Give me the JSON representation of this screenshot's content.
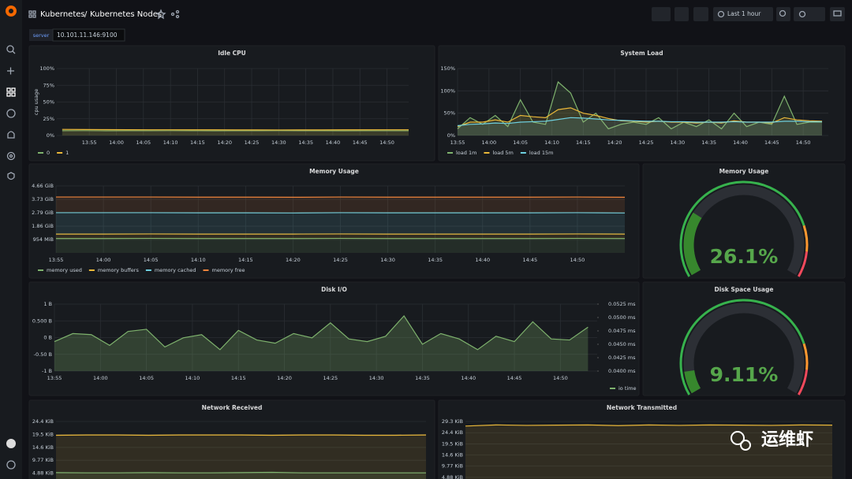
{
  "header": {
    "breadcrumb": "Kubernetes",
    "separator": "/",
    "title": "Kubernetes Nodes",
    "time_range": "Last 1 hour"
  },
  "variable": {
    "label": "server",
    "value": "10.101.11.146:9100"
  },
  "watermark": "运维虾",
  "panels": [
    {
      "title": "Idle CPU",
      "type": "line",
      "y_label": "cpu usage",
      "legend": "bottom-left",
      "xlim": [
        "13:49",
        "14:54"
      ],
      "xticks": [
        "13:55",
        "14:00",
        "14:05",
        "14:10",
        "14:15",
        "14:20",
        "14:25",
        "14:30",
        "14:35",
        "14:40",
        "14:45",
        "14:50"
      ],
      "ylim": [
        0,
        100
      ],
      "yticks": [
        {
          "value": 0,
          "label": "0%"
        },
        {
          "value": 25,
          "label": "25%"
        },
        {
          "value": 50,
          "label": "50%"
        },
        {
          "value": 75,
          "label": "75%"
        },
        {
          "value": 100,
          "label": "100%"
        }
      ],
      "x": [
        "13:50",
        "13:54",
        "13:58",
        "14:02",
        "14:06",
        "14:10",
        "14:14",
        "14:18",
        "14:22",
        "14:26",
        "14:30",
        "14:34",
        "14:38",
        "14:42",
        "14:46",
        "14:50",
        "14:54"
      ],
      "series": [
        {
          "name": "0",
          "color": "#7eb26d",
          "values": [
            7.2,
            7.3,
            7.1,
            7.2,
            7.2,
            7.3,
            7.2,
            7.1,
            7.2,
            7.2,
            7.3,
            7.2,
            7.2,
            7.1,
            7.2,
            7.2,
            7.2
          ]
        },
        {
          "name": "1",
          "color": "#eab839",
          "values": [
            9.2,
            9.0,
            8.8,
            8.7,
            8.6,
            8.6,
            8.5,
            8.5,
            8.4,
            8.4,
            8.3,
            8.4,
            8.4,
            8.5,
            8.5,
            8.6,
            8.6
          ]
        }
      ]
    },
    {
      "title": "System Load",
      "type": "line",
      "legend": "bottom-left",
      "xlim": [
        "13:55",
        "14:54"
      ],
      "xticks": [
        "13:55",
        "14:00",
        "14:05",
        "14:10",
        "14:15",
        "14:20",
        "14:25",
        "14:30",
        "14:35",
        "14:40",
        "14:45",
        "14:50"
      ],
      "ylim": [
        0,
        150
      ],
      "yticks": [
        {
          "value": 0,
          "label": "0%"
        },
        {
          "value": 50,
          "label": "50%"
        },
        {
          "value": 100,
          "label": "100%"
        },
        {
          "value": 150,
          "label": "150%"
        }
      ],
      "x": [
        "13:55",
        "13:57",
        "13:59",
        "14:01",
        "14:03",
        "14:05",
        "14:07",
        "14:09",
        "14:11",
        "14:13",
        "14:15",
        "14:17",
        "14:19",
        "14:21",
        "14:23",
        "14:25",
        "14:27",
        "14:29",
        "14:31",
        "14:33",
        "14:35",
        "14:37",
        "14:39",
        "14:41",
        "14:43",
        "14:45",
        "14:47",
        "14:49",
        "14:51",
        "14:53"
      ],
      "series": [
        {
          "name": "load 1m",
          "color": "#7eb26d",
          "values": [
            15,
            40,
            25,
            45,
            20,
            80,
            30,
            25,
            120,
            95,
            30,
            50,
            15,
            25,
            30,
            25,
            40,
            15,
            30,
            20,
            35,
            15,
            50,
            20,
            30,
            25,
            88,
            25,
            30,
            30
          ]
        },
        {
          "name": "load 5m",
          "color": "#eab839",
          "values": [
            20,
            30,
            30,
            35,
            30,
            45,
            42,
            40,
            58,
            62,
            50,
            45,
            38,
            33,
            32,
            30,
            32,
            30,
            30,
            28,
            30,
            28,
            33,
            30,
            30,
            28,
            40,
            35,
            33,
            32
          ]
        },
        {
          "name": "load 15m",
          "color": "#6ed0e0",
          "values": [
            22,
            25,
            26,
            28,
            27,
            30,
            31,
            32,
            36,
            40,
            39,
            37,
            35,
            34,
            33,
            32,
            32,
            31,
            31,
            30,
            30,
            30,
            31,
            30,
            30,
            30,
            32,
            32,
            31,
            31
          ]
        }
      ]
    },
    {
      "title": "Memory Usage",
      "type": "line",
      "stacked": true,
      "legend": "bottom-left",
      "xlim": [
        "13:55",
        "14:55"
      ],
      "xticks": [
        "13:55",
        "14:00",
        "14:05",
        "14:10",
        "14:15",
        "14:20",
        "14:25",
        "14:30",
        "14:35",
        "14:40",
        "14:45",
        "14:50"
      ],
      "ylim": [
        0,
        4.66
      ],
      "yticks": [
        {
          "value": 0.9316,
          "label": "954 MiB"
        },
        {
          "value": 1.86,
          "label": "1.86 GiB"
        },
        {
          "value": 2.79,
          "label": "2.79 GiB"
        },
        {
          "value": 3.73,
          "label": "3.73 GiB"
        },
        {
          "value": 4.66,
          "label": "4.66 GiB"
        }
      ],
      "x": [
        "13:55",
        "14:00",
        "14:05",
        "14:10",
        "14:15",
        "14:20",
        "14:25",
        "14:30",
        "14:35",
        "14:40",
        "14:45",
        "14:50",
        "14:55"
      ],
      "series": [
        {
          "name": "memory used",
          "color": "#7eb26d",
          "values": [
            1.0,
            1.0,
            1.01,
            1.0,
            1.0,
            1.0,
            1.01,
            1.0,
            1.0,
            1.0,
            1.0,
            1.01,
            1.0
          ]
        },
        {
          "name": "memory buffers",
          "color": "#eab839",
          "values": [
            0.31,
            0.31,
            0.31,
            0.31,
            0.31,
            0.31,
            0.31,
            0.31,
            0.31,
            0.31,
            0.31,
            0.31,
            0.31
          ]
        },
        {
          "name": "memory cached",
          "color": "#6ed0e0",
          "values": [
            1.49,
            1.49,
            1.48,
            1.48,
            1.48,
            1.47,
            1.48,
            1.48,
            1.48,
            1.48,
            1.48,
            1.48,
            1.47
          ]
        },
        {
          "name": "memory free",
          "color": "#ef843c",
          "values": [
            1.09,
            1.09,
            1.09,
            1.09,
            1.09,
            1.09,
            1.09,
            1.09,
            1.09,
            1.09,
            1.09,
            1.09,
            1.09
          ]
        }
      ]
    },
    {
      "title": "Memory Usage",
      "type": "gauge",
      "value": 26.1,
      "value_label": "26.1%",
      "min": 0,
      "max": 100,
      "color": "#37872d",
      "thresholds": [
        {
          "value": 80,
          "color": "#ff9830"
        },
        {
          "value": 90,
          "color": "#f2495c"
        }
      ]
    },
    {
      "title": "Disk I/O",
      "type": "line",
      "legend": "bottom-right",
      "xlim": [
        "13:55",
        "14:54"
      ],
      "xticks": [
        "13:55",
        "14:00",
        "14:05",
        "14:10",
        "14:15",
        "14:20",
        "14:25",
        "14:30",
        "14:35",
        "14:40",
        "14:45",
        "14:50"
      ],
      "ylim": [
        -1,
        1
      ],
      "yticks": [
        {
          "value": -1,
          "label": "-1 B"
        },
        {
          "value": -0.5,
          "label": "-0.50 B"
        },
        {
          "value": 0,
          "label": "0 B"
        },
        {
          "value": 0.5,
          "label": "0.500 B"
        },
        {
          "value": 1,
          "label": "1 B"
        }
      ],
      "y2lim": [
        0.04,
        0.0525
      ],
      "y2ticks": [
        {
          "value": 0.04,
          "label": "0.0400 ms"
        },
        {
          "value": 0.0425,
          "label": "0.0425 ms"
        },
        {
          "value": 0.045,
          "label": "0.0450 ms"
        },
        {
          "value": 0.0475,
          "label": "0.0475 ms"
        },
        {
          "value": 0.05,
          "label": "0.0500 ms"
        },
        {
          "value": 0.0525,
          "label": "0.0525 ms"
        }
      ],
      "x": [
        "13:55",
        "13:57",
        "13:59",
        "14:01",
        "14:03",
        "14:05",
        "14:07",
        "14:09",
        "14:11",
        "14:13",
        "14:15",
        "14:17",
        "14:19",
        "14:21",
        "14:23",
        "14:25",
        "14:27",
        "14:29",
        "14:31",
        "14:33",
        "14:35",
        "14:37",
        "14:39",
        "14:41",
        "14:43",
        "14:45",
        "14:47",
        "14:49",
        "14:51",
        "14:53"
      ],
      "series": [
        {
          "name": "io time",
          "color": "#7eb26d",
          "axis": "y2",
          "values": [
            0.0455,
            0.047,
            0.0468,
            0.0448,
            0.0474,
            0.0478,
            0.0445,
            0.0462,
            0.0468,
            0.044,
            0.0476,
            0.0458,
            0.0452,
            0.047,
            0.0462,
            0.049,
            0.046,
            0.0455,
            0.0465,
            0.0503,
            0.045,
            0.047,
            0.046,
            0.044,
            0.0465,
            0.0455,
            0.0492,
            0.046,
            0.0458,
            0.0482
          ]
        }
      ]
    },
    {
      "title": "Disk Space Usage",
      "type": "gauge",
      "value": 9.11,
      "value_label": "9.11%",
      "min": 0,
      "max": 100,
      "color": "#37872d",
      "thresholds": [
        {
          "value": 80,
          "color": "#ff9830"
        },
        {
          "value": 90,
          "color": "#f2495c"
        }
      ]
    },
    {
      "title": "Network Received",
      "type": "line",
      "xlim": [
        "13:55",
        "14:55"
      ],
      "ylim": [
        0,
        24.4
      ],
      "yticks": [
        {
          "value": 4.88,
          "label": "4.88 KiB"
        },
        {
          "value": 9.77,
          "label": "9.77 KiB"
        },
        {
          "value": 14.6,
          "label": "14.6 KiB"
        },
        {
          "value": 19.5,
          "label": "19.5 KiB"
        },
        {
          "value": 24.4,
          "label": "24.4 KiB"
        }
      ],
      "x": [
        "13:55",
        "14:00",
        "14:05",
        "14:10",
        "14:15",
        "14:20",
        "14:25",
        "14:30",
        "14:35",
        "14:40",
        "14:45",
        "14:50",
        "14:55"
      ],
      "series": [
        {
          "color": "#eab839",
          "values": [
            19.2,
            19.3,
            19.3,
            19.2,
            19.3,
            19.3,
            19.3,
            19.2,
            19.3,
            19.3,
            19.2,
            19.2,
            19.3
          ]
        },
        {
          "color": "#7eb26d",
          "values": [
            5.1,
            5.0,
            5.0,
            5.1,
            5.0,
            5.0,
            5.1,
            5.2,
            5.0,
            5.0,
            5.0,
            5.0,
            5.0
          ]
        }
      ]
    },
    {
      "title": "Network Transmitted",
      "type": "line",
      "xlim": [
        "13:55",
        "14:55"
      ],
      "ylim": [
        0,
        29.3
      ],
      "yticks": [
        {
          "value": 4.88,
          "label": "4.88 KiB"
        },
        {
          "value": 9.77,
          "label": "9.77 KiB"
        },
        {
          "value": 14.6,
          "label": "14.6 KiB"
        },
        {
          "value": 19.5,
          "label": "19.5 KiB"
        },
        {
          "value": 24.4,
          "label": "24.4 KiB"
        },
        {
          "value": 29.3,
          "label": "29.3 KiB"
        }
      ],
      "x": [
        "13:55",
        "14:00",
        "14:05",
        "14:10",
        "14:15",
        "14:20",
        "14:25",
        "14:30",
        "14:35",
        "14:40",
        "14:45",
        "14:50",
        "14:55"
      ],
      "series": [
        {
          "color": "#eab839",
          "values": [
            27.3,
            27.8,
            27.6,
            27.7,
            27.8,
            27.5,
            27.8,
            27.6,
            27.8,
            27.7,
            27.6,
            27.8,
            27.7
          ]
        }
      ]
    }
  ]
}
